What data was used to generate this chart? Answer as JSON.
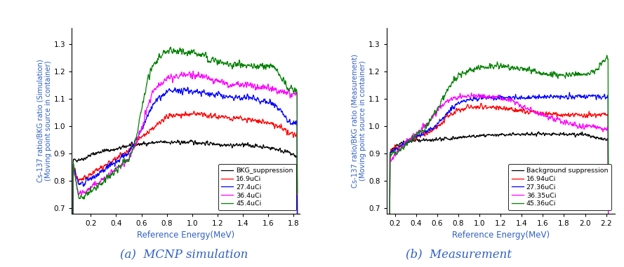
{
  "left": {
    "ylabel": "Cs-137 ratio/BKG ratio (Simulation)\n(Moving point source in container)",
    "xlabel": "Reference Energy(MeV)",
    "subtitle": "(a)  MCNP simulation",
    "xlim": [
      0.05,
      1.85
    ],
    "ylim": [
      0.68,
      1.36
    ],
    "xticks": [
      0.2,
      0.4,
      0.6,
      0.8,
      1.0,
      1.2,
      1.4,
      1.6,
      1.8
    ],
    "yticks": [
      0.7,
      0.8,
      0.9,
      1.0,
      1.1,
      1.2,
      1.3
    ],
    "series": [
      {
        "label": "BKG_suppression",
        "color": "#000000"
      },
      {
        "label": "16.9uCi",
        "color": "#ff0000"
      },
      {
        "label": "27.4uCi",
        "color": "#0000ff"
      },
      {
        "label": "36.4uCi",
        "color": "#ff00ff"
      },
      {
        "label": "45.4uCi",
        "color": "#008000"
      }
    ],
    "legend_loc": "lower right"
  },
  "right": {
    "ylabel": "Cs-137 ratio/BKG ratio (Measurement)\n(Moving point source in container)",
    "xlabel": "Reference Energy(MeV)",
    "subtitle": "(b)  Measurement",
    "xlim": [
      0.12,
      2.28
    ],
    "ylim": [
      0.68,
      1.36
    ],
    "xticks": [
      0.2,
      0.4,
      0.6,
      0.8,
      1.0,
      1.2,
      1.4,
      1.6,
      1.8,
      2.0,
      2.2
    ],
    "yticks": [
      0.7,
      0.8,
      0.9,
      1.0,
      1.1,
      1.2,
      1.3
    ],
    "series": [
      {
        "label": "Background suppression",
        "color": "#000000"
      },
      {
        "label": "16.94uCi",
        "color": "#ff0000"
      },
      {
        "label": "27.36uCi",
        "color": "#0000ff"
      },
      {
        "label": "36.35uCi",
        "color": "#ff00ff"
      },
      {
        "label": "45.36uCi",
        "color": "#008000"
      }
    ],
    "legend_loc": "lower right"
  },
  "subtitle_fontsize": 12,
  "axis_label_color": "#3060c0",
  "subtitle_color": "#3060c0",
  "tick_label_color": "#000000",
  "axis_label_fontsize": 8.5
}
